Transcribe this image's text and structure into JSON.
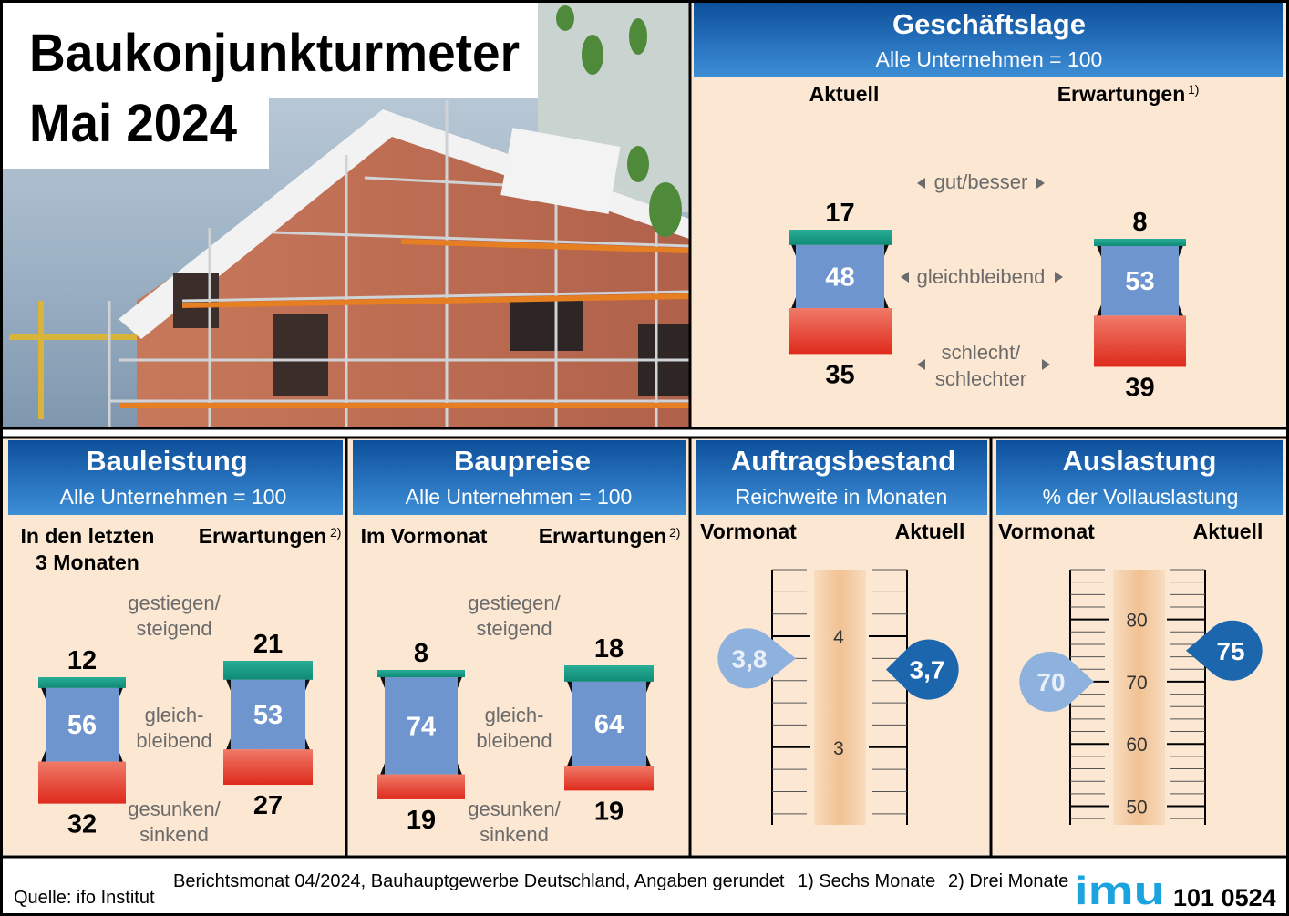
{
  "header": {
    "title_line1": "Baukonjunkturmeter",
    "title_line2": "Mai 2024"
  },
  "colors": {
    "teal": "#1fa28c",
    "blue": "#6f95cf",
    "red": "#e8402e",
    "panel": "#fbe7d2",
    "header_blue": "#1a5ea8",
    "gray_text": "#6b6b6b",
    "drop_light": "#8fb1dd",
    "drop_dark": "#1b66ad"
  },
  "chart_data": [
    {
      "id": "geschaeftslage",
      "type": "stacked-bar",
      "title": "Geschäftslage",
      "subtitle": "Alle Unternehmen = 100",
      "col1_label": "Aktuell",
      "col2_label": "Erwartungen",
      "col2_sup": "1)",
      "row_labels": {
        "top": "gut/besser",
        "mid": "gleichbleibend",
        "bot_l1": "schlecht/",
        "bot_l2": "schlechter"
      },
      "bars": [
        {
          "name": "Aktuell",
          "top": 17,
          "mid": 48,
          "bot": 35
        },
        {
          "name": "Erwartungen",
          "top": 8,
          "mid": 53,
          "bot": 39
        }
      ]
    },
    {
      "id": "bauleistung",
      "type": "stacked-bar",
      "title": "Bauleistung",
      "subtitle": "Alle Unternehmen = 100",
      "col1_label": "In den letzten",
      "col1_label2": "3 Monaten",
      "col2_label": "Erwartungen",
      "col2_sup": "2)",
      "row_labels": {
        "top_l1": "gestiegen/",
        "top_l2": "steigend",
        "mid_l1": "gleich-",
        "mid_l2": "bleibend",
        "bot_l1": "gesunken/",
        "bot_l2": "sinkend"
      },
      "bars": [
        {
          "name": "In den letzten 3 Monaten",
          "top": 12,
          "mid": 56,
          "bot": 32
        },
        {
          "name": "Erwartungen",
          "top": 21,
          "mid": 53,
          "bot": 27
        }
      ]
    },
    {
      "id": "baupreise",
      "type": "stacked-bar",
      "title": "Baupreise",
      "subtitle": "Alle Unternehmen = 100",
      "col1_label": "Im Vormonat",
      "col2_label": "Erwartungen",
      "col2_sup": "2)",
      "row_labels": {
        "top_l1": "gestiegen/",
        "top_l2": "steigend",
        "mid_l1": "gleich-",
        "mid_l2": "bleibend",
        "bot_l1": "gesunken/",
        "bot_l2": "sinkend"
      },
      "bars": [
        {
          "name": "Im Vormonat",
          "top": 8,
          "mid": 74,
          "bot": 19
        },
        {
          "name": "Erwartungen",
          "top": 18,
          "mid": 64,
          "bot": 19
        }
      ]
    },
    {
      "id": "auftragsbestand",
      "type": "gauge",
      "title": "Auftragsbestand",
      "subtitle": "Reichweite in Monaten",
      "col1_label": "Vormonat",
      "col2_label": "Aktuell",
      "scale": {
        "labeled_ticks": [
          "4",
          "3"
        ],
        "range": [
          2.3,
          4.6
        ]
      },
      "values": [
        {
          "name": "Vormonat",
          "value": 3.8,
          "label": "3,8"
        },
        {
          "name": "Aktuell",
          "value": 3.7,
          "label": "3,7"
        }
      ]
    },
    {
      "id": "auslastung",
      "type": "gauge",
      "title": "Auslastung",
      "subtitle": "% der Vollauslastung",
      "col1_label": "Vormonat",
      "col2_label": "Aktuell",
      "scale": {
        "labeled_ticks": [
          "80",
          "70",
          "60",
          "50"
        ],
        "range": [
          47,
          88
        ]
      },
      "values": [
        {
          "name": "Vormonat",
          "value": 70,
          "label": "70"
        },
        {
          "name": "Aktuell",
          "value": 75,
          "label": "75"
        }
      ]
    }
  ],
  "footer": {
    "source": "Quelle: ifo Institut",
    "note": "Berichtsmonat 04/2024, Bauhauptgewerbe Deutschland, Angaben gerundet",
    "fn1": "1) Sechs Monate",
    "fn2": "2) Drei Monate",
    "logo": "imu",
    "code": "101 0524"
  }
}
